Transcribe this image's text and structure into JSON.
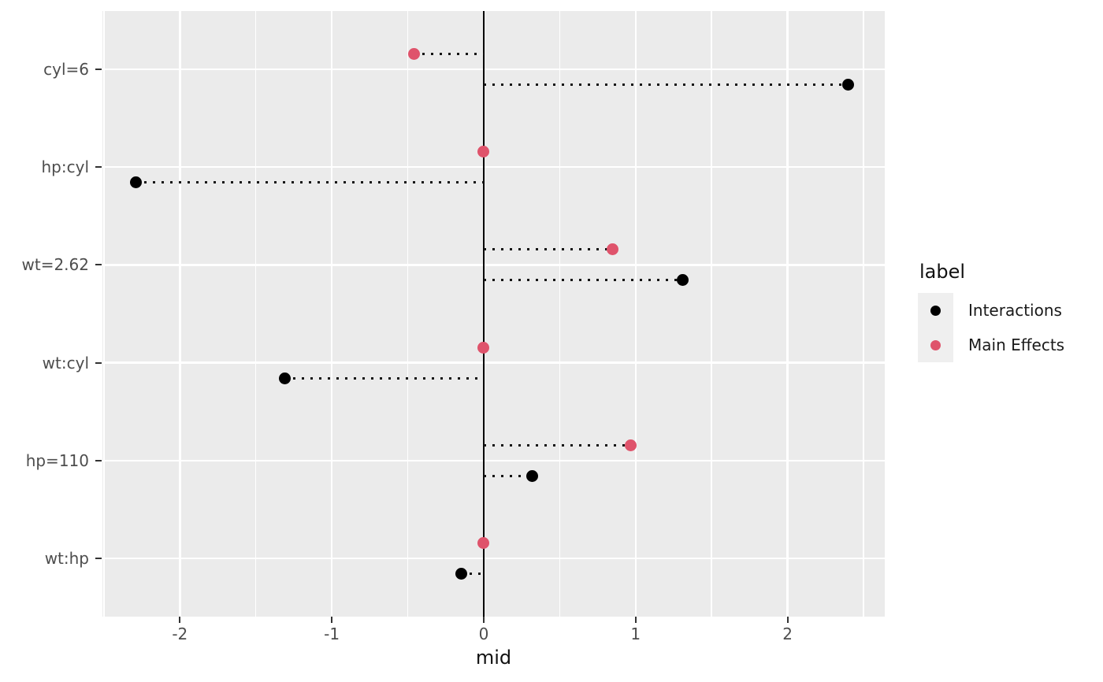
{
  "chart_data": {
    "type": "scatter",
    "subtype": "dot-plot-with-dotted-stems (lollipop)",
    "title": "",
    "xlabel": "mid",
    "ylabel": "",
    "categories": [
      "cyl=6",
      "hp:cyl",
      "wt=2.62",
      "wt:cyl",
      "hp=110",
      "wt:hp"
    ],
    "series": [
      {
        "name": "Main Effects",
        "color": "#DF536B",
        "row_offset": -0.157,
        "values": [
          -0.46,
          0.0,
          0.85,
          0.0,
          0.97,
          0.0
        ]
      },
      {
        "name": "Interactions",
        "color": "#000000",
        "row_offset": 0.157,
        "values": [
          2.4,
          -2.29,
          1.31,
          -1.31,
          0.32,
          -0.15
        ]
      }
    ],
    "xlim": [
      -2.51,
      2.64
    ],
    "x_major_ticks": [
      -2,
      -1,
      0,
      1,
      2
    ],
    "x_tick_labels": [
      "-2",
      "-1",
      "0",
      "1",
      "2"
    ],
    "x_minor_ticks": [
      -2.5,
      -1.5,
      -0.5,
      0.5,
      1.5,
      2.5
    ],
    "baseline_x": 0,
    "grid": true,
    "stem_style": "dotted",
    "legend_position": "right",
    "legend_title": "label",
    "colors": {
      "panel_bg": "#EBEBEB",
      "grid": "#FFFFFF",
      "axis_text": "#4D4D4D",
      "tick_mark": "#333333",
      "baseline": "#000000",
      "stem": "#141414",
      "legend_key_bg": "#EFEFEF"
    }
  },
  "legend": {
    "title": "label",
    "items": [
      {
        "label": "Interactions",
        "color": "#000000"
      },
      {
        "label": "Main Effects",
        "color": "#DF536B"
      }
    ]
  }
}
